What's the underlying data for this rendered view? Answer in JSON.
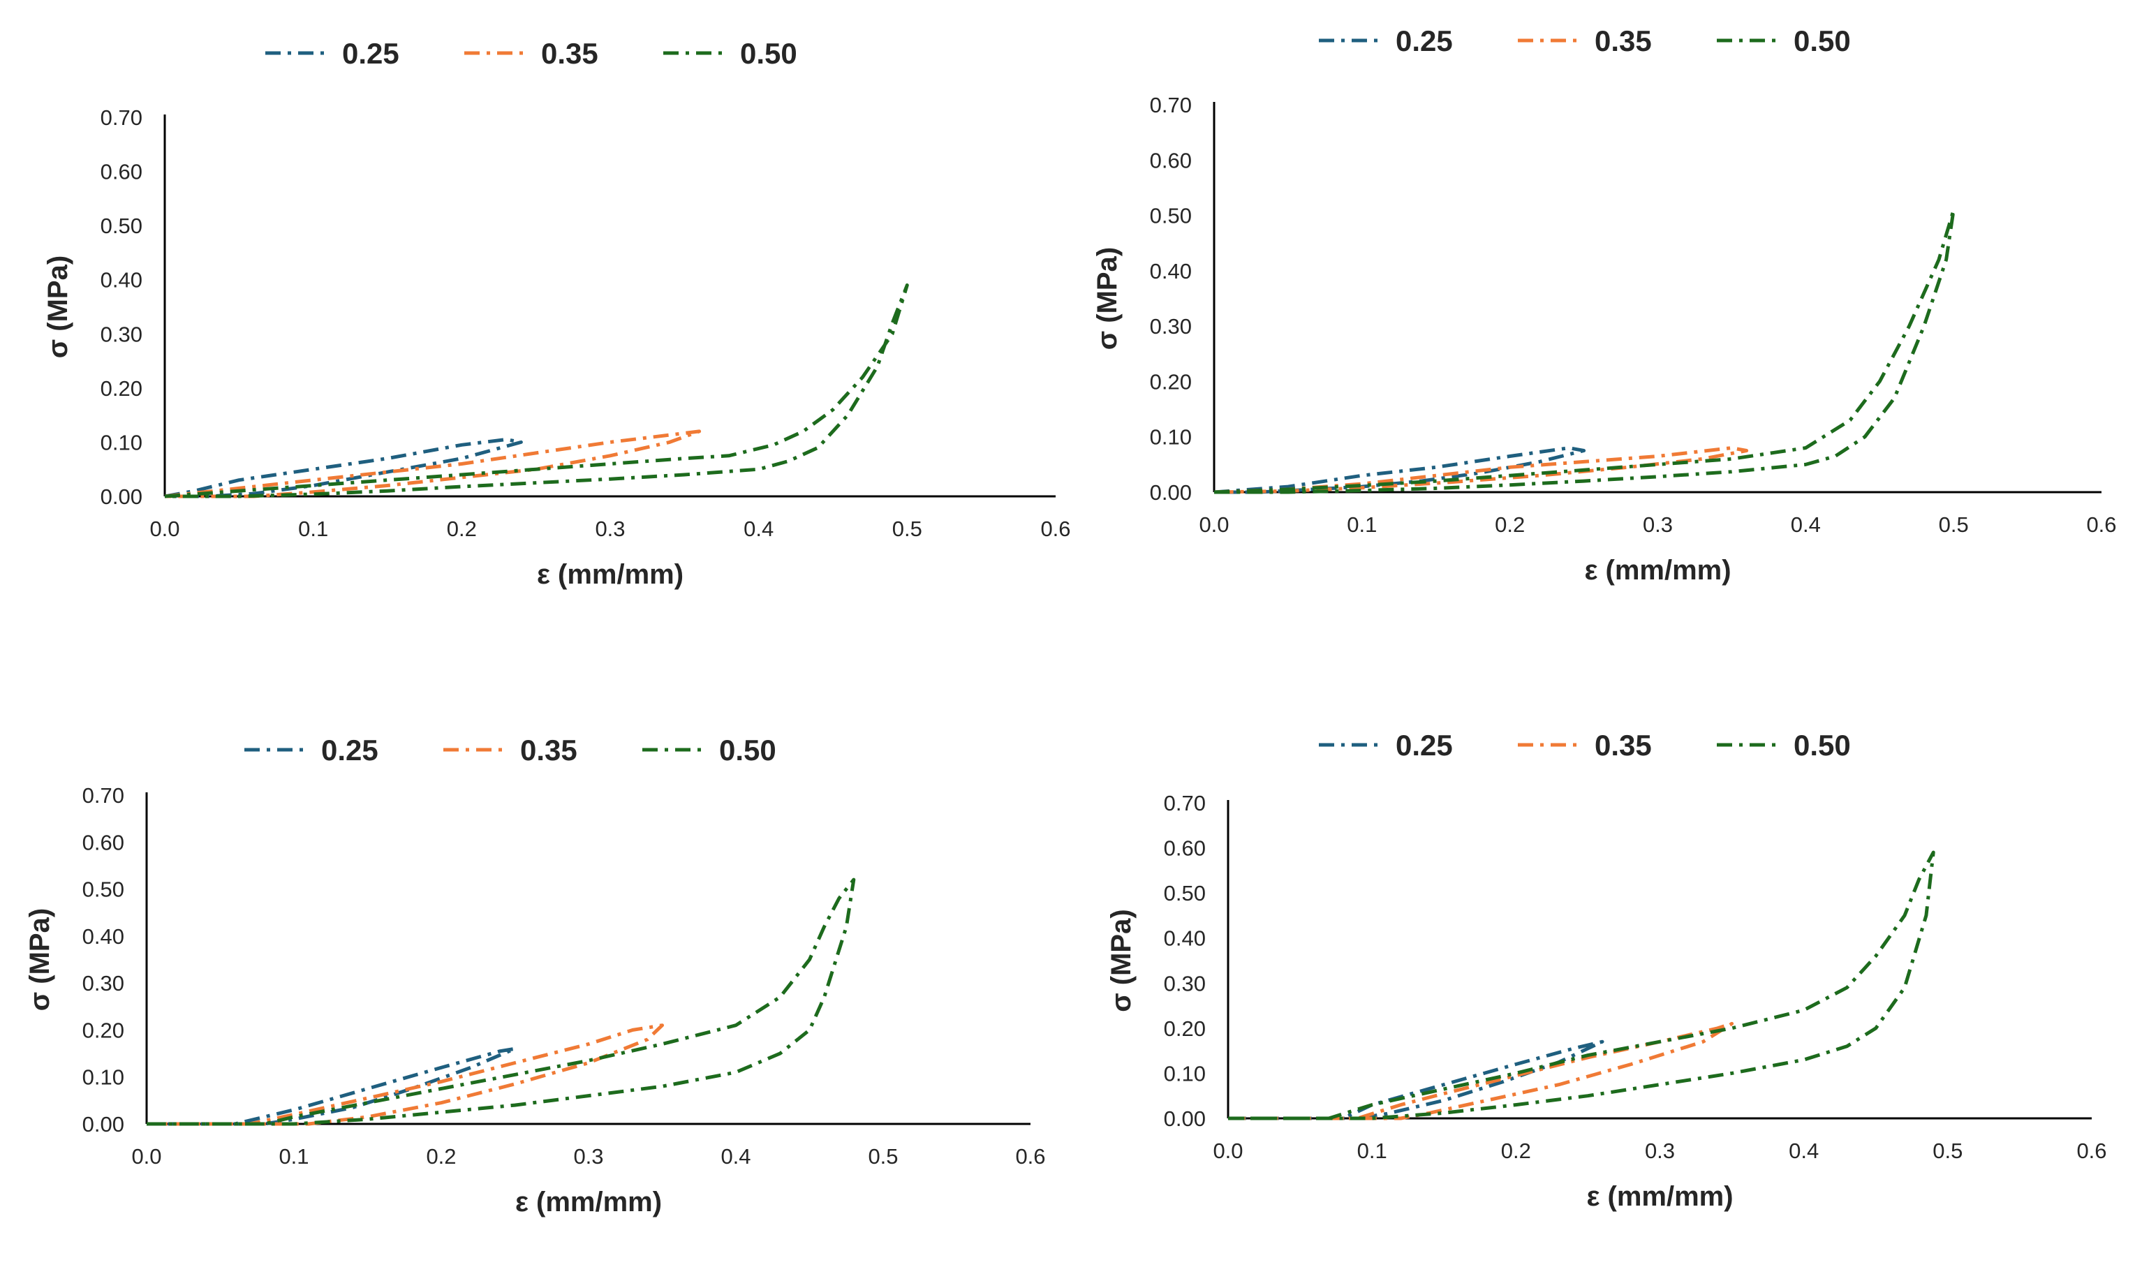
{
  "chart_data": [
    {
      "type": "line",
      "xlabel": "ε (mm/mm)",
      "ylabel": "σ (MPa)",
      "xlim": [
        0,
        0.6
      ],
      "ylim": [
        0,
        0.7
      ],
      "x_ticks": [
        "0.0",
        "0.1",
        "0.2",
        "0.3",
        "0.4",
        "0.5",
        "0.6"
      ],
      "y_ticks": [
        "0.00",
        "0.10",
        "0.20",
        "0.30",
        "0.40",
        "0.50",
        "0.60",
        "0.70"
      ],
      "legend_position": "top",
      "series": [
        {
          "name": "0.25",
          "color": "#1f5f7f",
          "x": [
            0.0,
            0.02,
            0.05,
            0.1,
            0.15,
            0.2,
            0.23,
            0.24,
            0.2,
            0.15,
            0.1,
            0.06,
            0.03,
            0.0
          ],
          "y": [
            0.0,
            0.01,
            0.03,
            0.05,
            0.07,
            0.095,
            0.105,
            0.1,
            0.07,
            0.045,
            0.02,
            0.005,
            0.0,
            0.0
          ]
        },
        {
          "name": "0.35",
          "color": "#f07a35",
          "x": [
            0.0,
            0.05,
            0.1,
            0.15,
            0.2,
            0.25,
            0.3,
            0.33,
            0.36,
            0.34,
            0.3,
            0.25,
            0.2,
            0.15,
            0.1,
            0.06,
            0.0
          ],
          "y": [
            0.0,
            0.015,
            0.03,
            0.045,
            0.06,
            0.08,
            0.1,
            0.11,
            0.12,
            0.1,
            0.075,
            0.05,
            0.035,
            0.02,
            0.008,
            0.0,
            0.0
          ]
        },
        {
          "name": "0.50",
          "color": "#1d6b1d",
          "x": [
            0.0,
            0.05,
            0.1,
            0.15,
            0.2,
            0.25,
            0.3,
            0.35,
            0.38,
            0.41,
            0.43,
            0.45,
            0.47,
            0.49,
            0.5,
            0.49,
            0.48,
            0.46,
            0.44,
            0.42,
            0.4,
            0.35,
            0.3,
            0.25,
            0.2,
            0.15,
            0.1,
            0.05,
            0.0
          ],
          "y": [
            0.0,
            0.01,
            0.02,
            0.03,
            0.04,
            0.05,
            0.06,
            0.07,
            0.075,
            0.095,
            0.12,
            0.16,
            0.22,
            0.3,
            0.39,
            0.32,
            0.24,
            0.15,
            0.09,
            0.065,
            0.05,
            0.04,
            0.032,
            0.025,
            0.018,
            0.01,
            0.004,
            0.0,
            0.0
          ]
        }
      ]
    },
    {
      "type": "line",
      "xlabel": "ε (mm/mm)",
      "ylabel": "σ (MPa)",
      "xlim": [
        0,
        0.6
      ],
      "ylim": [
        0,
        0.7
      ],
      "x_ticks": [
        "0.0",
        "0.1",
        "0.2",
        "0.3",
        "0.4",
        "0.5",
        "0.6"
      ],
      "y_ticks": [
        "0.00",
        "0.10",
        "0.20",
        "0.30",
        "0.40",
        "0.50",
        "0.60",
        "0.70"
      ],
      "legend_position": "top",
      "series": [
        {
          "name": "0.25",
          "color": "#1f5f7f",
          "x": [
            0.0,
            0.05,
            0.1,
            0.15,
            0.2,
            0.24,
            0.25,
            0.22,
            0.18,
            0.14,
            0.1,
            0.06,
            0.03,
            0.0
          ],
          "y": [
            0.0,
            0.01,
            0.03,
            0.045,
            0.065,
            0.08,
            0.075,
            0.055,
            0.035,
            0.02,
            0.01,
            0.004,
            0.0,
            0.0
          ]
        },
        {
          "name": "0.35",
          "color": "#f07a35",
          "x": [
            0.0,
            0.05,
            0.1,
            0.15,
            0.2,
            0.25,
            0.3,
            0.35,
            0.36,
            0.33,
            0.28,
            0.22,
            0.16,
            0.1,
            0.05,
            0.0
          ],
          "y": [
            0.0,
            0.005,
            0.015,
            0.03,
            0.045,
            0.055,
            0.065,
            0.08,
            0.075,
            0.06,
            0.045,
            0.03,
            0.018,
            0.008,
            0.002,
            0.0
          ]
        },
        {
          "name": "0.50",
          "color": "#1d6b1d",
          "x": [
            0.0,
            0.05,
            0.1,
            0.15,
            0.2,
            0.25,
            0.3,
            0.35,
            0.4,
            0.43,
            0.45,
            0.47,
            0.49,
            0.5,
            0.495,
            0.48,
            0.46,
            0.44,
            0.42,
            0.4,
            0.35,
            0.3,
            0.25,
            0.2,
            0.15,
            0.1,
            0.05,
            0.0
          ],
          "y": [
            0.0,
            0.005,
            0.012,
            0.02,
            0.03,
            0.04,
            0.05,
            0.06,
            0.08,
            0.13,
            0.2,
            0.3,
            0.42,
            0.51,
            0.42,
            0.3,
            0.17,
            0.1,
            0.065,
            0.05,
            0.037,
            0.028,
            0.02,
            0.013,
            0.007,
            0.003,
            0.0,
            0.0
          ]
        }
      ]
    },
    {
      "type": "line",
      "xlabel": "ε (mm/mm)",
      "ylabel": "σ (MPa)",
      "xlim": [
        0,
        0.6
      ],
      "ylim": [
        0,
        0.7
      ],
      "x_ticks": [
        "0.0",
        "0.1",
        "0.2",
        "0.3",
        "0.4",
        "0.5",
        "0.6"
      ],
      "y_ticks": [
        "0.00",
        "0.10",
        "0.20",
        "0.30",
        "0.40",
        "0.50",
        "0.60",
        "0.70"
      ],
      "legend_position": "top",
      "series": [
        {
          "name": "0.25",
          "color": "#1f5f7f",
          "x": [
            0.0,
            0.06,
            0.1,
            0.15,
            0.2,
            0.24,
            0.25,
            0.22,
            0.18,
            0.14,
            0.1,
            0.08,
            0.0
          ],
          "y": [
            0.0,
            0.0,
            0.03,
            0.075,
            0.12,
            0.155,
            0.16,
            0.12,
            0.075,
            0.035,
            0.01,
            0.0,
            0.0
          ]
        },
        {
          "name": "0.35",
          "color": "#f07a35",
          "x": [
            0.0,
            0.07,
            0.1,
            0.15,
            0.2,
            0.25,
            0.3,
            0.33,
            0.35,
            0.34,
            0.3,
            0.25,
            0.2,
            0.15,
            0.11,
            0.0
          ],
          "y": [
            0.0,
            0.0,
            0.02,
            0.055,
            0.09,
            0.13,
            0.17,
            0.2,
            0.21,
            0.18,
            0.13,
            0.085,
            0.045,
            0.015,
            0.0,
            0.0
          ]
        },
        {
          "name": "0.50",
          "color": "#1d6b1d",
          "x": [
            0.0,
            0.08,
            0.1,
            0.15,
            0.2,
            0.25,
            0.3,
            0.35,
            0.4,
            0.43,
            0.45,
            0.46,
            0.47,
            0.48,
            0.475,
            0.46,
            0.45,
            0.43,
            0.4,
            0.35,
            0.3,
            0.25,
            0.2,
            0.15,
            0.1,
            0.0
          ],
          "y": [
            0.0,
            0.0,
            0.015,
            0.045,
            0.075,
            0.105,
            0.135,
            0.17,
            0.21,
            0.27,
            0.35,
            0.42,
            0.48,
            0.52,
            0.42,
            0.27,
            0.2,
            0.15,
            0.11,
            0.08,
            0.06,
            0.04,
            0.025,
            0.01,
            0.0,
            0.0
          ]
        }
      ]
    },
    {
      "type": "line",
      "xlabel": "ε (mm/mm)",
      "ylabel": "σ (MPa)",
      "xlim": [
        0,
        0.6
      ],
      "ylim": [
        0,
        0.7
      ],
      "x_ticks": [
        "0.0",
        "0.1",
        "0.2",
        "0.3",
        "0.4",
        "0.5",
        "0.6"
      ],
      "y_ticks": [
        "0.00",
        "0.10",
        "0.20",
        "0.30",
        "0.40",
        "0.50",
        "0.60",
        "0.70"
      ],
      "legend_position": "top",
      "series": [
        {
          "name": "0.25",
          "color": "#1f5f7f",
          "x": [
            0.0,
            0.08,
            0.1,
            0.15,
            0.2,
            0.24,
            0.26,
            0.23,
            0.19,
            0.15,
            0.11,
            0.09,
            0.0
          ],
          "y": [
            0.0,
            0.0,
            0.03,
            0.075,
            0.12,
            0.155,
            0.17,
            0.125,
            0.08,
            0.04,
            0.01,
            0.0,
            0.0
          ]
        },
        {
          "name": "0.35",
          "color": "#f07a35",
          "x": [
            0.0,
            0.09,
            0.12,
            0.15,
            0.2,
            0.25,
            0.3,
            0.34,
            0.35,
            0.33,
            0.28,
            0.23,
            0.18,
            0.14,
            0.12,
            0.0
          ],
          "y": [
            0.0,
            0.0,
            0.03,
            0.055,
            0.095,
            0.135,
            0.17,
            0.2,
            0.21,
            0.17,
            0.12,
            0.075,
            0.04,
            0.012,
            0.0,
            0.0
          ]
        },
        {
          "name": "0.50",
          "color": "#1d6b1d",
          "x": [
            0.0,
            0.07,
            0.1,
            0.15,
            0.2,
            0.25,
            0.3,
            0.35,
            0.4,
            0.43,
            0.45,
            0.47,
            0.48,
            0.49,
            0.485,
            0.47,
            0.45,
            0.43,
            0.4,
            0.35,
            0.3,
            0.25,
            0.2,
            0.15,
            0.1,
            0.0
          ],
          "y": [
            0.0,
            0.0,
            0.03,
            0.065,
            0.1,
            0.14,
            0.17,
            0.2,
            0.24,
            0.29,
            0.36,
            0.45,
            0.53,
            0.59,
            0.45,
            0.29,
            0.2,
            0.16,
            0.13,
            0.1,
            0.075,
            0.05,
            0.03,
            0.012,
            0.0,
            0.0
          ]
        }
      ]
    }
  ]
}
